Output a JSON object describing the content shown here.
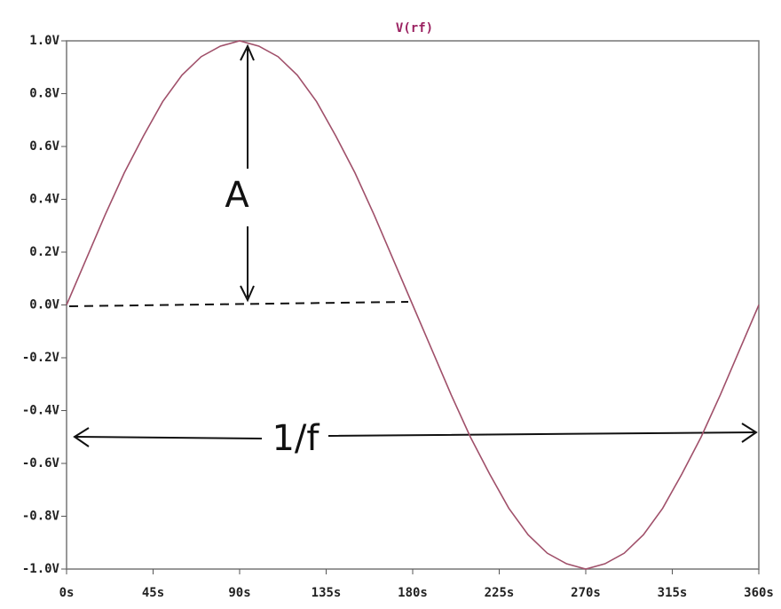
{
  "chart_data": {
    "type": "line",
    "x": [
      0,
      10,
      20,
      30,
      40,
      50,
      60,
      70,
      80,
      90,
      100,
      110,
      120,
      130,
      140,
      150,
      160,
      170,
      180,
      190,
      200,
      210,
      220,
      230,
      240,
      250,
      260,
      270,
      280,
      290,
      300,
      310,
      320,
      330,
      340,
      350,
      360
    ],
    "series": [
      {
        "name": "V(rf)",
        "color": "#a0506a",
        "values": [
          0,
          0.17,
          0.34,
          0.5,
          0.64,
          0.77,
          0.87,
          0.94,
          0.98,
          1,
          0.98,
          0.94,
          0.87,
          0.77,
          0.64,
          0.5,
          0.34,
          0.17,
          0,
          -0.17,
          -0.34,
          -0.5,
          -0.64,
          -0.77,
          -0.87,
          -0.94,
          -0.98,
          -1,
          -0.98,
          -0.94,
          -0.87,
          -0.77,
          -0.64,
          -0.5,
          -0.34,
          -0.17,
          0
        ]
      }
    ],
    "xlim": [
      0,
      360
    ],
    "xticks": [
      {
        "value": 0,
        "label": "0s"
      },
      {
        "value": 45,
        "label": "45s"
      },
      {
        "value": 90,
        "label": "90s"
      },
      {
        "value": 135,
        "label": "135s"
      },
      {
        "value": 180,
        "label": "180s"
      },
      {
        "value": 225,
        "label": "225s"
      },
      {
        "value": 270,
        "label": "270s"
      },
      {
        "value": 315,
        "label": "315s"
      },
      {
        "value": 360,
        "label": "360s"
      }
    ],
    "ylim": [
      -1,
      1
    ],
    "yticks": [
      {
        "value": 1,
        "label": "1.0V"
      },
      {
        "value": 0.8,
        "label": "0.8V"
      },
      {
        "value": 0.6,
        "label": "0.6V"
      },
      {
        "value": 0.4,
        "label": "0.4V"
      },
      {
        "value": 0.2,
        "label": "0.2V"
      },
      {
        "value": 0,
        "label": "0.0V"
      },
      {
        "value": -0.2,
        "label": "-0.2V"
      },
      {
        "value": -0.4,
        "label": "-0.4V"
      },
      {
        "value": -0.6,
        "label": "-0.6V"
      },
      {
        "value": -0.8,
        "label": "-0.8V"
      },
      {
        "value": -1,
        "label": "-1.0V"
      }
    ],
    "annotations": [
      "A",
      "1/f"
    ]
  }
}
